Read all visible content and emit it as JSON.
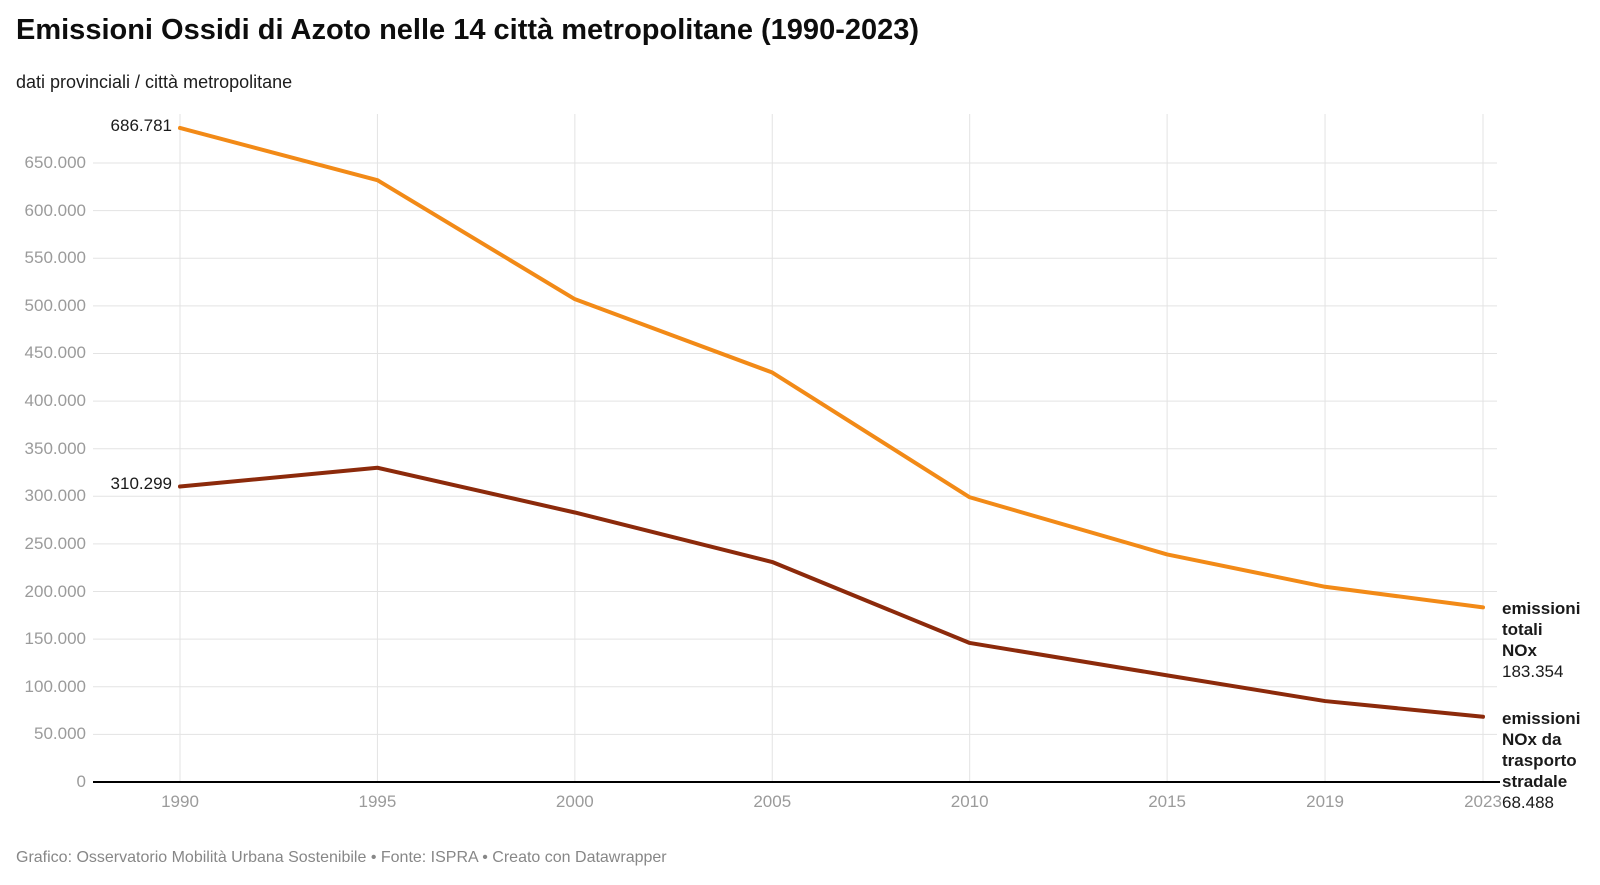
{
  "header": {
    "title": "Emissioni Ossidi di Azoto nelle 14 città metropolitane (1990-2023)",
    "subtitle": "dati provinciali / città metropolitane"
  },
  "chart_data": {
    "type": "line",
    "title": "Emissioni Ossidi di Azoto nelle 14 città metropolitane (1990-2023)",
    "subtitle": "dati provinciali / città metropolitane",
    "xlabel": "",
    "ylabel": "",
    "x": [
      1990,
      1995,
      2000,
      2005,
      2010,
      2015,
      2019,
      2023
    ],
    "x_tick_labels": [
      "1990",
      "1995",
      "2000",
      "2005",
      "2010",
      "2015",
      "2019",
      "2023"
    ],
    "xlim": [
      1990,
      2023
    ],
    "ylim": [
      0,
      650000
    ],
    "y_ticks": [
      0,
      50000,
      100000,
      150000,
      200000,
      250000,
      300000,
      350000,
      400000,
      450000,
      500000,
      550000,
      600000,
      650000
    ],
    "y_tick_labels": [
      "0",
      "50.000",
      "100.000",
      "150.000",
      "200.000",
      "250.000",
      "300.000",
      "350.000",
      "400.000",
      "450.000",
      "500.000",
      "550.000",
      "600.000",
      "650.000"
    ],
    "grid": true,
    "legend_position": "direct-labels-right",
    "series": [
      {
        "name": "emissioni totali NOx",
        "color": "#F28A17",
        "values": [
          686781,
          632000,
          507000,
          430000,
          299000,
          239000,
          205000,
          183354
        ],
        "first_point_label": "686.781",
        "last_point_label": "183.354",
        "label_lines": [
          "emissioni",
          "totali",
          "NOx"
        ]
      },
      {
        "name": "emissioni NOx da trasporto stradale",
        "color": "#8C2A0B",
        "values": [
          310299,
          330000,
          283000,
          231000,
          146000,
          112000,
          85000,
          68488
        ],
        "first_point_label": "310.299",
        "last_point_label": "68.488",
        "label_lines": [
          "emissioni",
          "NOx da",
          "trasporto",
          "stradale"
        ]
      }
    ]
  },
  "footer": {
    "credit": "Grafico: Osservatorio Mobilità Urbana Sostenibile • Fonte: ISPRA • Creato con Datawrapper"
  },
  "colors": {
    "grid": "#E3E3E3",
    "axis_line": "#000000",
    "tick_text": "#9B9B9B",
    "annotation_text": "#1A1A1A",
    "footer_text": "#878787"
  }
}
